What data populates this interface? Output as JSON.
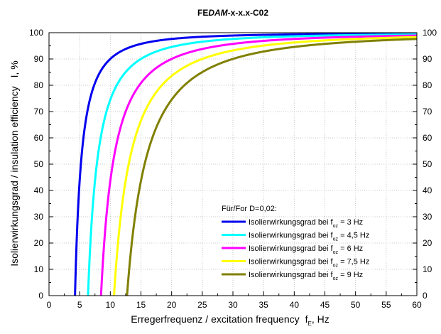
{
  "chart_data": {
    "type": "line",
    "title_prefix": "FE",
    "title_italic": "DAM",
    "title_suffix": "-x-x.x-C02",
    "xlabel": "Erregerfrequenz / excitation frequency",
    "xlabel_symbol": "f",
    "xlabel_sub": "E",
    "xlabel_unit": ", Hz",
    "ylabel": "Isolierwirkungsgrad / insulation efficiency",
    "ylabel_symbol": "I",
    "ylabel_unit": ", %",
    "xlim": [
      0,
      60
    ],
    "ylim": [
      0,
      100
    ],
    "xticks": [
      0,
      5,
      10,
      15,
      20,
      25,
      30,
      35,
      40,
      45,
      50,
      55,
      60
    ],
    "yticks": [
      0,
      10,
      20,
      30,
      40,
      50,
      60,
      70,
      80,
      90,
      100
    ],
    "grid": true,
    "mirror_right_axis": true,
    "legend_position": "bottom-right",
    "legend_title": "Für/For D=0,02:",
    "damping": 0.02,
    "series": [
      {
        "label_prefix": "Isolierwirkungsgrad bei f",
        "label_sub": "oz",
        "label_suffix": " = 3 Hz",
        "foz": 3,
        "color": "#0000ee"
      },
      {
        "label_prefix": "Isolierwirkungsgrad bei f",
        "label_sub": "oz",
        "label_suffix": " = 4,5 Hz",
        "foz": 4.5,
        "color": "#00ffff"
      },
      {
        "label_prefix": "Isolierwirkungsgrad bei f",
        "label_sub": "oz",
        "label_suffix": " = 6 Hz",
        "foz": 6,
        "color": "#ff00ff"
      },
      {
        "label_prefix": "Isolierwirkungsgrad bei f",
        "label_sub": "oz",
        "label_suffix": " = 7,5 Hz",
        "foz": 7.5,
        "color": "#ffff00"
      },
      {
        "label_prefix": "Isolierwirkungsgrad bei f",
        "label_sub": "oz",
        "label_suffix": " = 9 Hz",
        "foz": 9,
        "color": "#808000"
      }
    ]
  }
}
